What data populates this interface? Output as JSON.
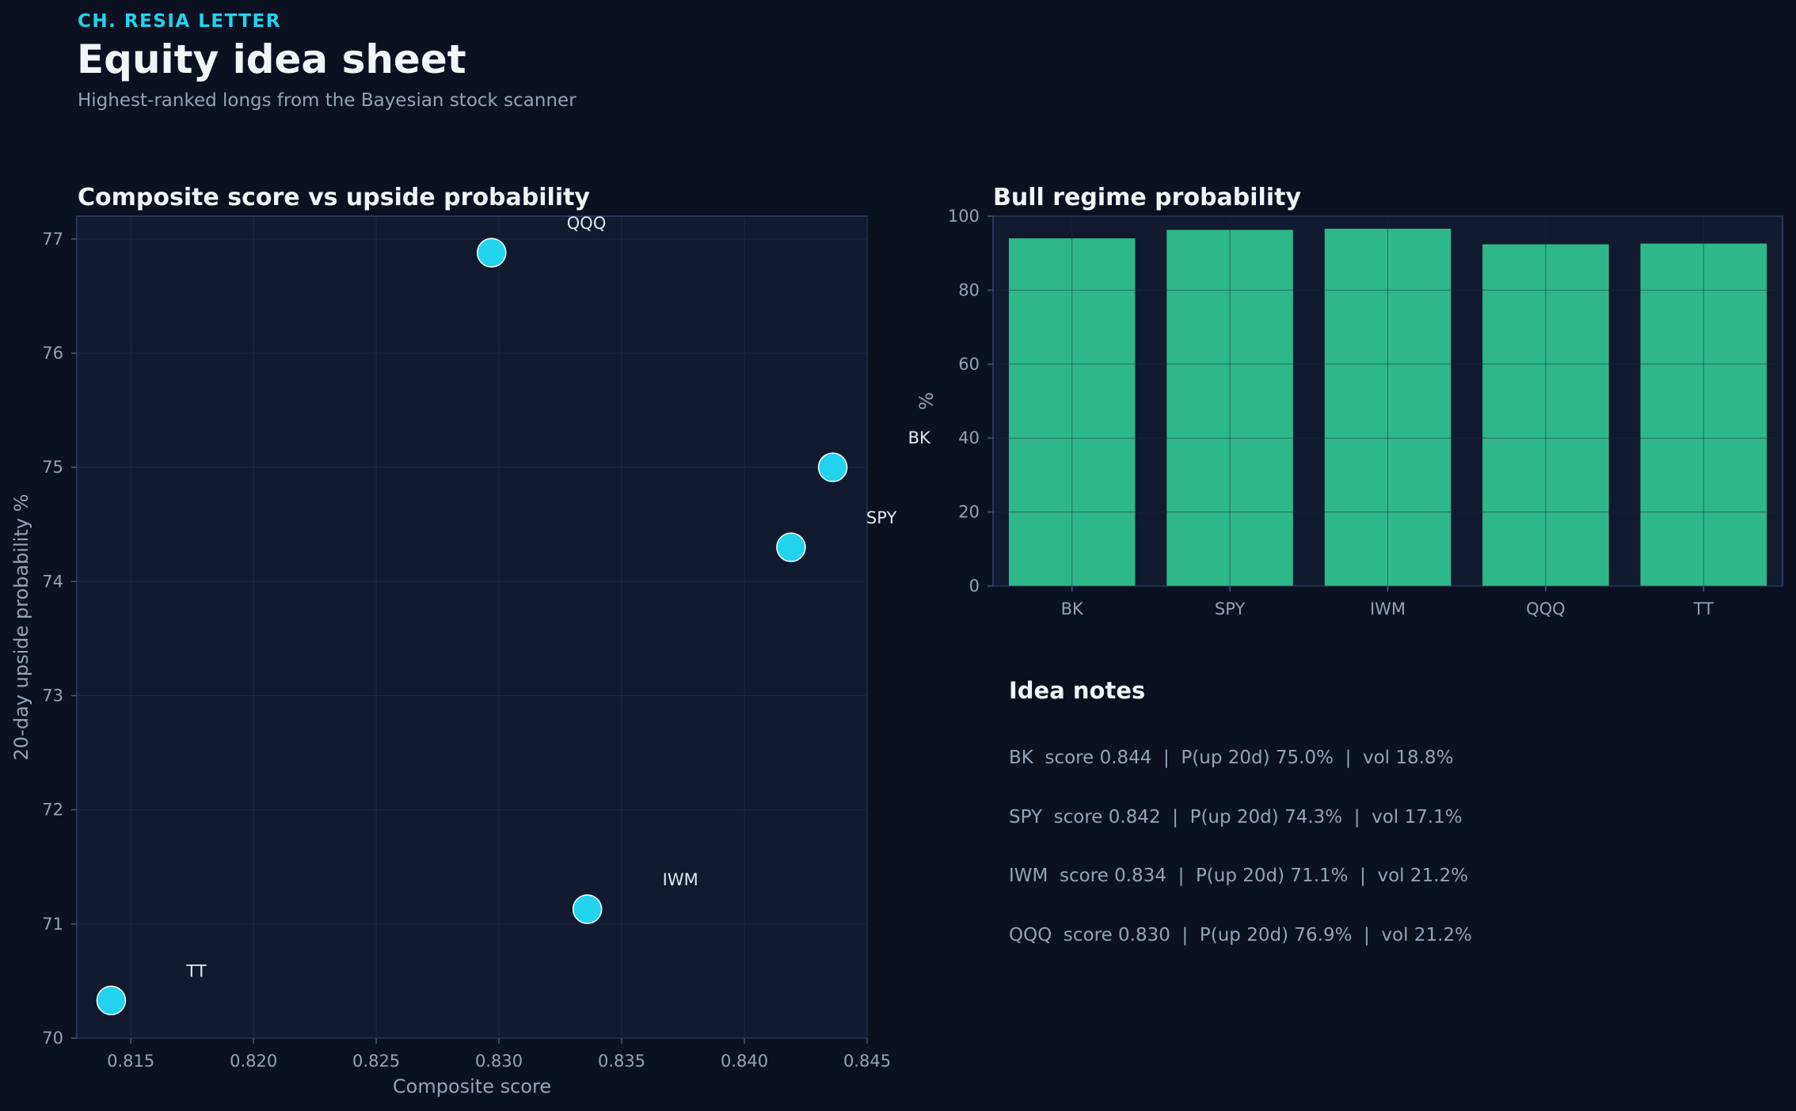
{
  "header": {
    "brand": "CH. RESIA LETTER",
    "title": "Equity idea sheet",
    "subtitle": "Highest-ranked longs from the Bayesian stock scanner"
  },
  "chart_data": [
    {
      "type": "scatter",
      "title": "Composite score vs upside probability",
      "xlabel": "Composite score",
      "ylabel": "20-day upside probability %",
      "xlim": [
        0.8128,
        0.845
      ],
      "ylim": [
        70,
        77.2
      ],
      "xticks": [
        "0.815",
        "0.820",
        "0.825",
        "0.830",
        "0.835",
        "0.840",
        "0.845"
      ],
      "yticks": [
        "70",
        "71",
        "72",
        "73",
        "74",
        "75",
        "76",
        "77"
      ],
      "grid": true,
      "points": [
        {
          "label": "BK",
          "x": 0.8436,
          "y": 75.0
        },
        {
          "label": "SPY",
          "x": 0.8419,
          "y": 74.3
        },
        {
          "label": "IWM",
          "x": 0.8336,
          "y": 71.13
        },
        {
          "label": "QQQ",
          "x": 0.8297,
          "y": 76.88
        },
        {
          "label": "TT",
          "x": 0.8142,
          "y": 70.33
        }
      ],
      "colors": {
        "point": "#22d3ee",
        "point_edge": "#ffffff"
      }
    },
    {
      "type": "bar",
      "title": "Bull regime probability",
      "xlabel": "",
      "ylabel": "%",
      "ylim": [
        0,
        100
      ],
      "yticks": [
        "0",
        "20",
        "40",
        "60",
        "80",
        "100"
      ],
      "grid": true,
      "categories": [
        "BK",
        "SPY",
        "IWM",
        "QQQ",
        "TT"
      ],
      "values": [
        94.0,
        96.3,
        96.6,
        92.4,
        92.6
      ],
      "colors": {
        "bar": "#2eb88a"
      }
    }
  ],
  "notes": {
    "title": "Idea notes",
    "lines": [
      "BK  score 0.844  |  P(up 20d) 75.0%  |  vol 18.8%",
      "SPY  score 0.842  |  P(up 20d) 74.3%  |  vol 17.1%",
      "IWM  score 0.834  |  P(up 20d) 71.1%  |  vol 21.2%",
      "QQQ  score 0.830  |  P(up 20d) 76.9%  |  vol 21.2%"
    ]
  },
  "colors": {
    "background": "#0b1121",
    "panel": "#111a2e",
    "accent": "#22d3ee",
    "text": "#f1f5f9",
    "muted": "#94a3b8"
  }
}
